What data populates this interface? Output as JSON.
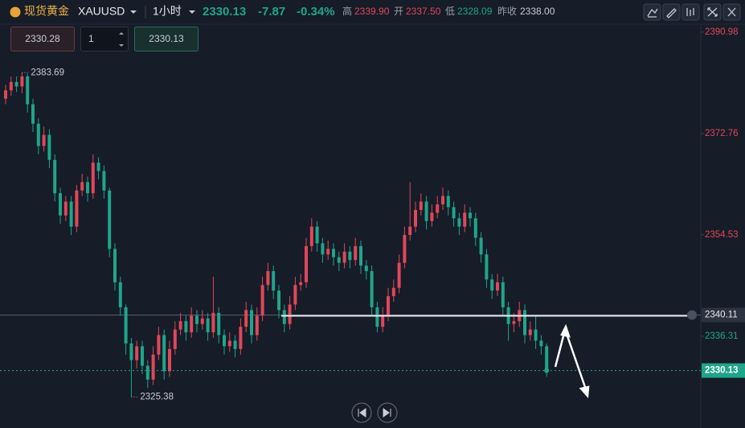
{
  "header": {
    "symbol_name": "现货黄金",
    "symbol": "XAUUSD",
    "interval": "1小时",
    "last": "2330.13",
    "change": "-7.87",
    "change_pct": "-0.34%",
    "high_label": "高",
    "high": "2339.90",
    "open_label": "开",
    "open": "2337.50",
    "low_label": "低",
    "low": "2328.09",
    "prev_close_label": "昨收",
    "prev_close": "2338.00"
  },
  "order": {
    "sell": 2330.28,
    "qty": 1,
    "buy": 2330.13
  },
  "chart_data": {
    "type": "candlestick",
    "up_color": "#e0475a",
    "down_color": "#1fa58a",
    "ylim": [
      2319.8,
      2392.4
    ],
    "yticks": [
      2390.98,
      2372.76,
      2354.53,
      2336.31
    ],
    "reference": 2338.0,
    "marked_price": 2340.11,
    "open": [
      2379.0,
      2380.5,
      2382.0,
      2381.2,
      2383.0,
      2378.0,
      2374.5,
      2370.5,
      2372.5,
      2368.0,
      2362.0,
      2358.0,
      2360.5,
      2356.0,
      2362.5,
      2364.0,
      2362.0,
      2367.5,
      2366.0,
      2362.5,
      2352.0,
      2346.0,
      2341.5,
      2335.0,
      2332.0,
      2334.5,
      2331.0,
      2328.5,
      2333.0,
      2336.5,
      2330.0,
      2334.0,
      2337.5,
      2339.0,
      2337.0,
      2340.0,
      2338.5,
      2339.5,
      2337.0,
      2340.5,
      2336.5,
      2334.5,
      2335.5,
      2334.0,
      2338.0,
      2341.0,
      2336.5,
      2340.0,
      2345.5,
      2348.0,
      2344.5,
      2341.0,
      2338.5,
      2342.0,
      2345.5,
      2346.0,
      2352.5,
      2356.0,
      2353.0,
      2351.0,
      2352.0,
      2350.5,
      2349.5,
      2351.5,
      2350.0,
      2352.5,
      2349.0,
      2348.0,
      2341.5,
      2338.0,
      2340.0,
      2343.5,
      2345.0,
      2349.5,
      2354.5,
      2356.0,
      2359.0,
      2360.5,
      2357.0,
      2358.5,
      2360.0,
      2361.5,
      2359.5,
      2357.5,
      2356.0,
      2358.5,
      2357.5,
      2354.0,
      2351.0,
      2346.5,
      2344.5,
      2346.0,
      2341.5,
      2338.5,
      2339.0,
      2341.0,
      2336.5,
      2337.5,
      2335.5,
      2334.5
    ],
    "high": [
      2381.5,
      2383.0,
      2383.0,
      2383.69,
      2383.5,
      2379.0,
      2375.5,
      2374.0,
      2373.5,
      2369.0,
      2363.0,
      2361.5,
      2361.5,
      2363.5,
      2365.5,
      2365.0,
      2369.0,
      2368.5,
      2367.0,
      2363.0,
      2353.0,
      2347.0,
      2342.0,
      2336.0,
      2335.5,
      2335.5,
      2332.0,
      2334.5,
      2338.0,
      2337.5,
      2335.5,
      2339.0,
      2340.5,
      2340.0,
      2341.5,
      2341.0,
      2341.0,
      2340.5,
      2347.0,
      2341.5,
      2337.5,
      2337.0,
      2336.5,
      2339.5,
      2342.5,
      2342.0,
      2341.5,
      2347.0,
      2349.5,
      2349.0,
      2345.5,
      2342.0,
      2343.5,
      2347.0,
      2347.5,
      2354.0,
      2357.5,
      2357.0,
      2354.0,
      2353.5,
      2353.0,
      2351.5,
      2353.0,
      2352.5,
      2354.0,
      2353.5,
      2350.0,
      2349.0,
      2342.5,
      2341.5,
      2345.0,
      2346.5,
      2351.0,
      2356.0,
      2364.0,
      2360.5,
      2362.0,
      2361.5,
      2360.0,
      2361.5,
      2363.0,
      2362.5,
      2360.5,
      2358.5,
      2360.0,
      2359.5,
      2358.5,
      2355.0,
      2352.0,
      2347.5,
      2347.5,
      2347.0,
      2342.5,
      2340.5,
      2342.5,
      2342.0,
      2339.0,
      2340.0,
      2336.5,
      2335.0
    ],
    "low": [
      2378.0,
      2379.5,
      2380.2,
      2380.0,
      2376.5,
      2373.0,
      2369.0,
      2369.5,
      2366.5,
      2360.5,
      2356.5,
      2357.0,
      2354.5,
      2355.0,
      2361.5,
      2360.5,
      2361.0,
      2364.5,
      2361.0,
      2350.5,
      2344.5,
      2340.0,
      2333.0,
      2325.38,
      2330.5,
      2329.5,
      2327.0,
      2327.5,
      2332.0,
      2328.5,
      2329.0,
      2333.0,
      2336.5,
      2335.5,
      2336.0,
      2337.0,
      2337.5,
      2335.5,
      2336.0,
      2335.0,
      2333.0,
      2333.5,
      2332.5,
      2333.0,
      2337.0,
      2335.0,
      2335.5,
      2339.0,
      2344.5,
      2343.0,
      2339.5,
      2337.0,
      2337.5,
      2341.0,
      2344.5,
      2345.0,
      2351.5,
      2351.5,
      2349.5,
      2350.0,
      2349.0,
      2348.0,
      2348.5,
      2348.5,
      2349.0,
      2347.5,
      2346.5,
      2340.0,
      2337.0,
      2337.0,
      2339.0,
      2342.5,
      2344.0,
      2348.5,
      2353.5,
      2355.0,
      2358.0,
      2355.5,
      2356.0,
      2357.5,
      2359.0,
      2358.0,
      2356.0,
      2354.5,
      2355.0,
      2356.0,
      2352.5,
      2349.5,
      2345.0,
      2343.0,
      2343.5,
      2340.0,
      2335.5,
      2337.0,
      2338.0,
      2335.0,
      2335.5,
      2334.0,
      2333.0,
      2329.0
    ],
    "close": [
      2380.5,
      2382.0,
      2381.2,
      2383.0,
      2378.0,
      2374.5,
      2370.5,
      2372.5,
      2368.0,
      2362.0,
      2358.0,
      2360.5,
      2356.0,
      2362.5,
      2364.0,
      2362.0,
      2367.5,
      2366.0,
      2362.5,
      2352.0,
      2346.0,
      2341.5,
      2335.0,
      2332.0,
      2334.5,
      2331.0,
      2328.5,
      2333.0,
      2336.5,
      2330.0,
      2334.0,
      2337.5,
      2339.0,
      2337.0,
      2340.0,
      2338.5,
      2339.5,
      2337.0,
      2340.5,
      2336.5,
      2334.5,
      2335.5,
      2334.0,
      2338.0,
      2341.0,
      2336.5,
      2340.0,
      2345.5,
      2348.0,
      2344.5,
      2341.0,
      2338.5,
      2342.0,
      2345.5,
      2346.0,
      2352.5,
      2356.0,
      2353.0,
      2351.0,
      2352.0,
      2350.5,
      2349.5,
      2351.5,
      2350.0,
      2352.5,
      2349.0,
      2348.0,
      2341.5,
      2338.0,
      2340.0,
      2343.5,
      2345.0,
      2349.5,
      2354.5,
      2356.0,
      2359.0,
      2360.5,
      2357.0,
      2358.5,
      2360.0,
      2361.5,
      2359.5,
      2357.5,
      2356.0,
      2358.5,
      2357.5,
      2354.0,
      2351.0,
      2346.5,
      2344.5,
      2346.0,
      2341.5,
      2338.5,
      2339.0,
      2341.0,
      2336.5,
      2337.5,
      2335.5,
      2334.5,
      2330.13
    ]
  }
}
